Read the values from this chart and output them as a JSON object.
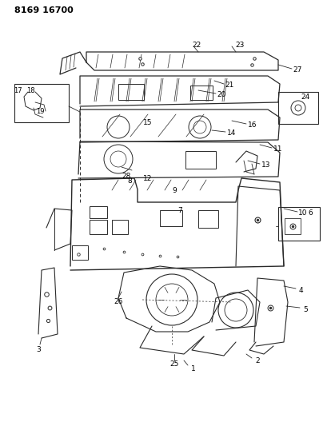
{
  "title_code": "8169 16700",
  "background_color": "#ffffff",
  "line_color": "#2a2a2a",
  "text_color": "#000000",
  "fig_width": 4.1,
  "fig_height": 5.33,
  "dpi": 100
}
